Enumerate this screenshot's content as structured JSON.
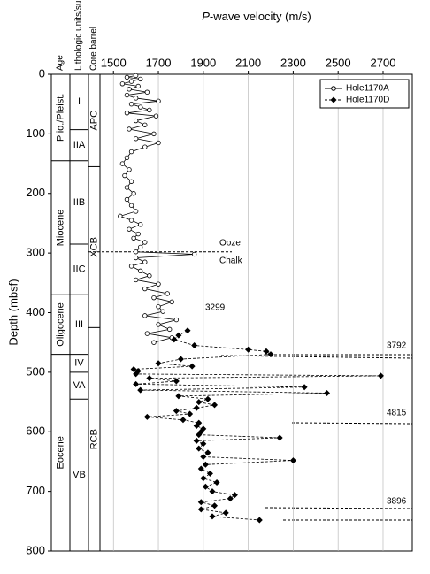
{
  "chart_data": {
    "type": "scatter",
    "x_title_italic": "P",
    "x_title": "-wave velocity (m/s)",
    "y_title": "Depth (mbsf)",
    "column_headers": [
      "Age",
      "Lithologic units/subunits",
      "Core barrel"
    ],
    "xlim": [
      1440,
      2830
    ],
    "xticks": [
      1500,
      1700,
      1900,
      2100,
      2300,
      2500,
      2700
    ],
    "ylim": [
      0,
      800
    ],
    "y_inverted": true,
    "yticks": [
      0,
      100,
      200,
      300,
      400,
      500,
      600,
      700,
      800
    ],
    "grid": true,
    "legend": "top-right",
    "age_units": [
      {
        "label": "Plio./Pleist.",
        "top": 0,
        "bottom": 145
      },
      {
        "label": "Miocene",
        "top": 145,
        "bottom": 370
      },
      {
        "label": "Oligocene",
        "top": 370,
        "bottom": 470
      },
      {
        "label": "Eocene",
        "top": 470,
        "bottom": 800
      }
    ],
    "lith_units": [
      {
        "label": "I",
        "top": 0,
        "bottom": 93
      },
      {
        "label": "IIA",
        "top": 93,
        "bottom": 145
      },
      {
        "label": "IIB",
        "top": 145,
        "bottom": 285
      },
      {
        "label": "IIC",
        "top": 285,
        "bottom": 370
      },
      {
        "label": "III",
        "top": 370,
        "bottom": 470
      },
      {
        "label": "IV",
        "top": 470,
        "bottom": 500
      },
      {
        "label": "VA",
        "top": 500,
        "bottom": 545
      },
      {
        "label": "VB",
        "top": 545,
        "bottom": 800
      }
    ],
    "core_barrel": [
      {
        "label": "APC",
        "top": 0,
        "bottom": 155
      },
      {
        "label": "XCB",
        "top": 155,
        "bottom": 425
      },
      {
        "label": "RCB",
        "top": 425,
        "bottom": 800
      }
    ],
    "boundary": {
      "depth": 298,
      "above": "Ooze",
      "below": "Chalk"
    },
    "annotations": [
      "3299",
      "3792",
      "4815",
      "3896"
    ],
    "series": [
      {
        "name": "Hole1170A",
        "marker": "open-circle",
        "color": "#000000",
        "y": [
          2,
          5,
          8,
          12,
          16,
          20,
          25,
          30,
          35,
          40,
          45,
          50,
          55,
          60,
          65,
          70,
          78,
          85,
          92,
          100,
          108,
          115,
          122,
          130,
          140,
          150,
          160,
          170,
          180,
          190,
          200,
          210,
          220,
          230,
          238,
          245,
          252,
          260,
          268,
          275,
          282,
          290,
          298,
          302,
          308,
          315,
          322,
          330,
          338,
          345,
          352,
          360,
          368,
          375,
          382,
          390,
          398,
          405,
          412,
          420,
          428,
          435,
          442,
          450
        ],
        "x": [
          1600,
          1560,
          1620,
          1580,
          1540,
          1610,
          1570,
          1650,
          1560,
          1600,
          1700,
          1580,
          1620,
          1660,
          1560,
          1690,
          1600,
          1640,
          1570,
          1680,
          1600,
          1700,
          1640,
          1580,
          1560,
          1540,
          1570,
          1550,
          1580,
          1560,
          1590,
          1560,
          1580,
          1600,
          1530,
          1580,
          1620,
          1570,
          1610,
          1590,
          1640,
          1620,
          1600,
          1860,
          1600,
          1640,
          1580,
          1620,
          1660,
          1600,
          1700,
          1640,
          1740,
          1680,
          1760,
          1700,
          1720,
          1640,
          1780,
          1700,
          1750,
          1650,
          1760,
          1680
        ]
      },
      {
        "name": "Hole1170D",
        "marker": "filled-diamond",
        "color": "#000000",
        "y": [
          430,
          438,
          445,
          455,
          462,
          465,
          470,
          478,
          485,
          490,
          495,
          498,
          503,
          506,
          510,
          515,
          520,
          525,
          530,
          535,
          540,
          545,
          550,
          555,
          560,
          565,
          570,
          575,
          580,
          585,
          590,
          595,
          600,
          605,
          610,
          615,
          620,
          628,
          635,
          642,
          648,
          655,
          662,
          670,
          678,
          685,
          692,
          700,
          706,
          712,
          718,
          724,
          730,
          736,
          742,
          748
        ],
        "x": [
          1830,
          1790,
          1770,
          1860,
          2100,
          2180,
          2200,
          1800,
          1700,
          1850,
          1590,
          1610,
          1600,
          2690,
          1660,
          1780,
          1600,
          2350,
          1620,
          2450,
          1790,
          1920,
          1880,
          1950,
          1870,
          1780,
          1840,
          1650,
          1810,
          1880,
          1870,
          1900,
          1890,
          1880,
          2240,
          1870,
          1900,
          1880,
          1920,
          1900,
          2300,
          1910,
          1890,
          1930,
          1900,
          1960,
          1910,
          1940,
          2040,
          2020,
          1890,
          1950,
          1890,
          2000,
          1940,
          2150
        ]
      }
    ]
  }
}
